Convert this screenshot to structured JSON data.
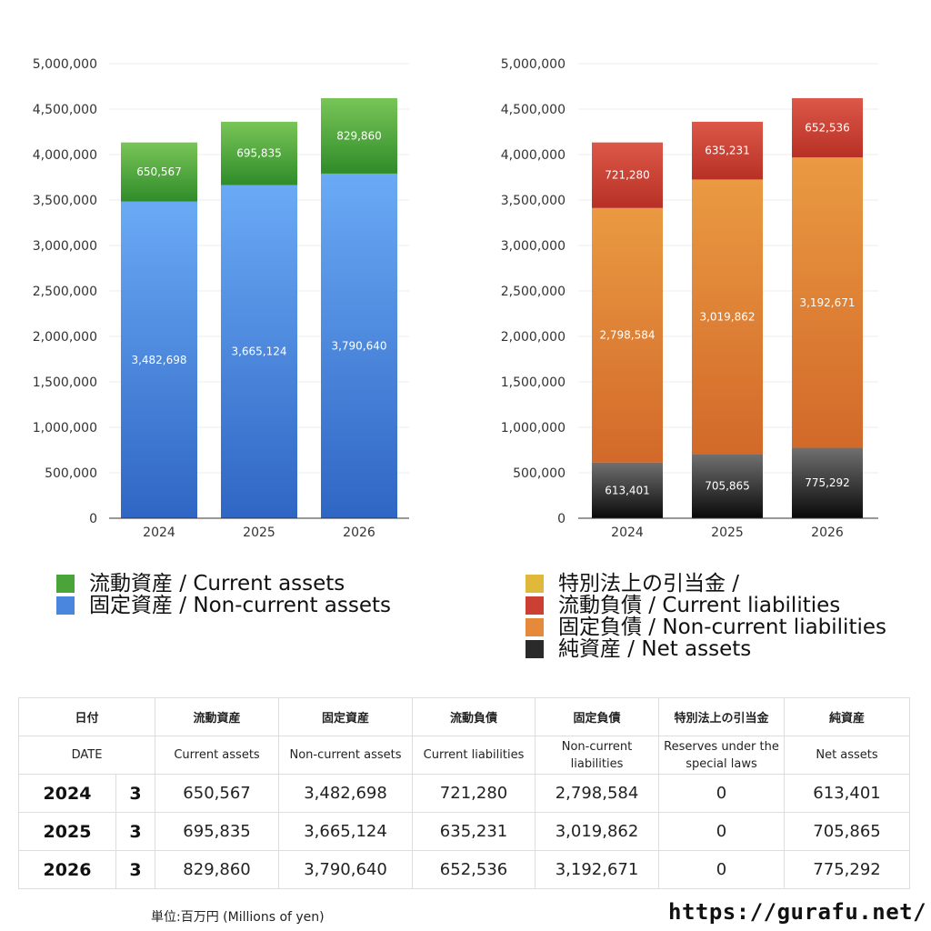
{
  "chart_data": [
    {
      "type": "bar",
      "stacked": true,
      "categories": [
        "2024",
        "2025",
        "2026"
      ],
      "series": [
        {
          "name": "固定資産 / Non-current assets",
          "values": [
            3482698,
            3665124,
            3790640
          ],
          "labels": [
            "3,482,698",
            "3,665,124",
            "3,790,640"
          ],
          "color_top": "#6aaaf5",
          "color_bottom": "#2f66c4"
        },
        {
          "name": "流動資産 / Current assets",
          "values": [
            650567,
            695835,
            829860
          ],
          "labels": [
            "650,567",
            "695,835",
            "829,860"
          ],
          "color_top": "#79c558",
          "color_bottom": "#2f8c29"
        }
      ],
      "ylim": [
        0,
        5000000
      ],
      "yticks": [
        0,
        500000,
        1000000,
        1500000,
        2000000,
        2500000,
        3000000,
        3500000,
        4000000,
        4500000,
        5000000
      ],
      "ytick_labels": [
        "0",
        "500,000",
        "1,000,000",
        "1,500,000",
        "2,000,000",
        "2,500,000",
        "3,000,000",
        "3,500,000",
        "4,000,000",
        "4,500,000",
        "5,000,000"
      ],
      "grid": true
    },
    {
      "type": "bar",
      "stacked": true,
      "categories": [
        "2024",
        "2025",
        "2026"
      ],
      "series": [
        {
          "name": "純資産 / Net assets",
          "values": [
            613401,
            705865,
            775292
          ],
          "labels": [
            "613,401",
            "705,865",
            "775,292"
          ],
          "color_top": "#707070",
          "color_bottom": "#0a0a0a"
        },
        {
          "name": "固定負債 / Non-current liabilities",
          "values": [
            2798584,
            3019862,
            3192671
          ],
          "labels": [
            "2,798,584",
            "3,019,862",
            "3,192,671"
          ],
          "color_top": "#ea9a42",
          "color_bottom": "#d2692a"
        },
        {
          "name": "流動負債 / Current liabilities",
          "values": [
            721280,
            635231,
            652536
          ],
          "labels": [
            "721,280",
            "635,231",
            "652,536"
          ],
          "color_top": "#dc5848",
          "color_bottom": "#b83025"
        },
        {
          "name": "特別法上の引当金 /",
          "values": [
            0,
            0,
            0
          ],
          "labels": [
            "",
            "",
            ""
          ],
          "color_top": "#e8c14a",
          "color_bottom": "#d4a820"
        }
      ],
      "ylim": [
        0,
        5000000
      ],
      "yticks": [
        0,
        500000,
        1000000,
        1500000,
        2000000,
        2500000,
        3000000,
        3500000,
        4000000,
        4500000,
        5000000
      ],
      "ytick_labels": [
        "0",
        "500,000",
        "1,000,000",
        "1,500,000",
        "2,000,000",
        "2,500,000",
        "3,000,000",
        "3,500,000",
        "4,000,000",
        "4,500,000",
        "5,000,000"
      ],
      "grid": true
    }
  ],
  "legend_left": [
    {
      "label": "流動資産 / Current assets",
      "color": "#4aa43a"
    },
    {
      "label": "固定資産 / Non-current assets",
      "color": "#4a86de"
    }
  ],
  "legend_right": [
    {
      "label": "特別法上の引当金 /",
      "color": "#e0b93a"
    },
    {
      "label": "流動負債 / Current liabilities",
      "color": "#cc4033"
    },
    {
      "label": "固定負債 / Non-current liabilities",
      "color": "#e58a3a"
    },
    {
      "label": "純資産 / Net assets",
      "color": "#2a2a2a"
    }
  ],
  "table": {
    "header_jp": [
      "日付",
      "流動資産",
      "固定資産",
      "流動負債",
      "固定負債",
      "特別法上の引当金",
      "純資産"
    ],
    "header_en": [
      "DATE",
      "Current assets",
      "Non-current assets",
      "Current liabilities",
      "Non-current liabilities",
      "Reserves under the special laws",
      "Net assets"
    ],
    "month": "3",
    "rows": [
      {
        "year": "2024",
        "values": [
          "650,567",
          "3,482,698",
          "721,280",
          "2,798,584",
          "0",
          "613,401"
        ]
      },
      {
        "year": "2025",
        "values": [
          "695,835",
          "3,665,124",
          "635,231",
          "3,019,862",
          "0",
          "705,865"
        ]
      },
      {
        "year": "2026",
        "values": [
          "829,860",
          "3,790,640",
          "652,536",
          "3,192,671",
          "0",
          "775,292"
        ]
      }
    ]
  },
  "footer": {
    "unit_note": "単位:百万円 (Millions of yen)",
    "url": "https://gurafu.net/"
  }
}
